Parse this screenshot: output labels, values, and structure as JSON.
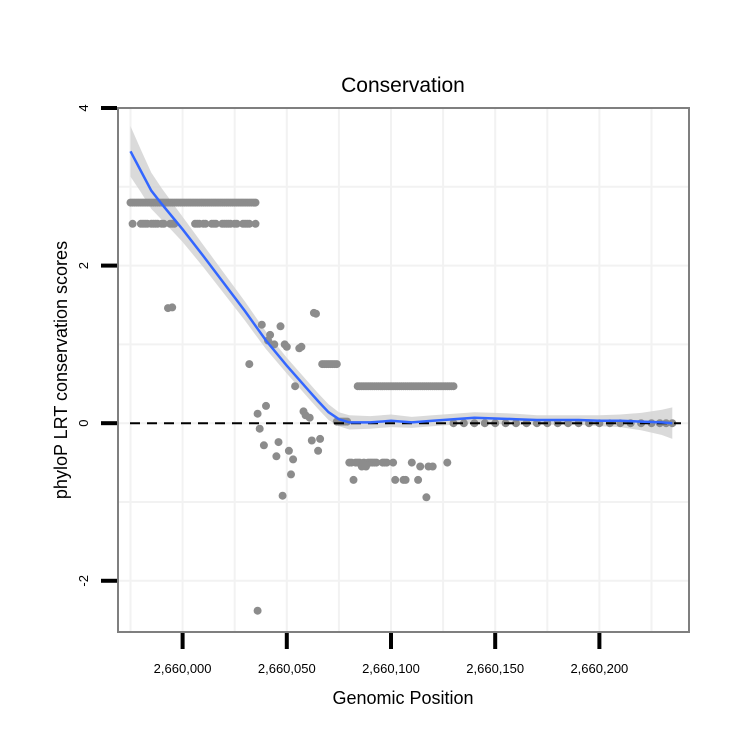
{
  "chart_data": {
    "type": "scatter",
    "title": "Conservation",
    "xlabel": "Genomic Position",
    "ylabel": "phyloP LRT conservation scores",
    "xlim": [
      2659969,
      2660243
    ],
    "ylim": [
      -2.65,
      4.0
    ],
    "x_ticks": [
      {
        "value": 2660000,
        "label": "2,660,000"
      },
      {
        "value": 2660050,
        "label": "2,660,050"
      },
      {
        "value": 2660100,
        "label": "2,660,100"
      },
      {
        "value": 2660150,
        "label": "2,660,150"
      },
      {
        "value": 2660200,
        "label": "2,660,200"
      }
    ],
    "y_ticks": [
      {
        "value": 4,
        "label": "4"
      },
      {
        "value": 2,
        "label": "2"
      },
      {
        "value": 0,
        "label": "0"
      },
      {
        "value": -2,
        "label": "-2"
      }
    ],
    "grid": true,
    "reference_line": {
      "y": 0,
      "style": "dashed"
    },
    "colors": {
      "points": "#8c8c8c",
      "smooth_line": "#3366ff",
      "ribbon": "#d3d3d3",
      "grid": "#f2f2f2",
      "panel_border": "#7f7f7f"
    },
    "series": [
      {
        "name": "observations",
        "type": "scatter",
        "points": [
          [
            2659975,
            2.8
          ],
          [
            2659976,
            2.8
          ],
          [
            2659977,
            2.8
          ],
          [
            2659978,
            2.8
          ],
          [
            2659979,
            2.8
          ],
          [
            2659980,
            2.8
          ],
          [
            2659981,
            2.8
          ],
          [
            2659982,
            2.8
          ],
          [
            2659983,
            2.8
          ],
          [
            2659984,
            2.8
          ],
          [
            2659985,
            2.8
          ],
          [
            2659986,
            2.8
          ],
          [
            2659987,
            2.8
          ],
          [
            2659988,
            2.8
          ],
          [
            2659989,
            2.8
          ],
          [
            2659990,
            2.8
          ],
          [
            2659991,
            2.8
          ],
          [
            2659992,
            2.8
          ],
          [
            2659993,
            2.8
          ],
          [
            2659994,
            2.8
          ],
          [
            2659995,
            2.8
          ],
          [
            2659996,
            2.8
          ],
          [
            2659997,
            2.8
          ],
          [
            2659998,
            2.8
          ],
          [
            2659999,
            2.8
          ],
          [
            2660000,
            2.8
          ],
          [
            2660001,
            2.8
          ],
          [
            2660002,
            2.8
          ],
          [
            2660003,
            2.8
          ],
          [
            2660004,
            2.8
          ],
          [
            2660005,
            2.8
          ],
          [
            2660006,
            2.8
          ],
          [
            2660007,
            2.8
          ],
          [
            2660008,
            2.8
          ],
          [
            2660009,
            2.8
          ],
          [
            2660010,
            2.8
          ],
          [
            2660011,
            2.8
          ],
          [
            2660012,
            2.8
          ],
          [
            2660013,
            2.8
          ],
          [
            2660014,
            2.8
          ],
          [
            2660015,
            2.8
          ],
          [
            2660016,
            2.8
          ],
          [
            2660017,
            2.8
          ],
          [
            2660018,
            2.8
          ],
          [
            2660019,
            2.8
          ],
          [
            2660020,
            2.8
          ],
          [
            2660021,
            2.8
          ],
          [
            2660022,
            2.8
          ],
          [
            2660023,
            2.8
          ],
          [
            2660024,
            2.8
          ],
          [
            2660025,
            2.8
          ],
          [
            2660026,
            2.8
          ],
          [
            2660027,
            2.8
          ],
          [
            2660028,
            2.8
          ],
          [
            2660029,
            2.8
          ],
          [
            2660030,
            2.8
          ],
          [
            2660031,
            2.8
          ],
          [
            2660032,
            2.8
          ],
          [
            2660033,
            2.8
          ],
          [
            2660034,
            2.8
          ],
          [
            2660035,
            2.8
          ],
          [
            2659976,
            2.53
          ],
          [
            2659980,
            2.53
          ],
          [
            2659981,
            2.53
          ],
          [
            2659982,
            2.53
          ],
          [
            2659983,
            2.53
          ],
          [
            2659985,
            2.53
          ],
          [
            2659986,
            2.53
          ],
          [
            2659987,
            2.53
          ],
          [
            2659988,
            2.53
          ],
          [
            2659990,
            2.53
          ],
          [
            2659991,
            2.53
          ],
          [
            2659994,
            2.53
          ],
          [
            2659995,
            2.53
          ],
          [
            2659996,
            2.53
          ],
          [
            2660006,
            2.53
          ],
          [
            2660007,
            2.53
          ],
          [
            2660008,
            2.53
          ],
          [
            2660010,
            2.53
          ],
          [
            2660011,
            2.53
          ],
          [
            2660014,
            2.53
          ],
          [
            2660015,
            2.53
          ],
          [
            2660016,
            2.53
          ],
          [
            2660019,
            2.53
          ],
          [
            2660020,
            2.53
          ],
          [
            2660021,
            2.53
          ],
          [
            2660022,
            2.53
          ],
          [
            2660023,
            2.53
          ],
          [
            2660025,
            2.53
          ],
          [
            2660026,
            2.53
          ],
          [
            2660029,
            2.53
          ],
          [
            2660030,
            2.53
          ],
          [
            2660031,
            2.53
          ],
          [
            2660032,
            2.53
          ],
          [
            2660035,
            2.53
          ],
          [
            2659993,
            1.46
          ],
          [
            2659995,
            1.47
          ],
          [
            2660032,
            0.75
          ],
          [
            2660036,
            0.12
          ],
          [
            2660037,
            -0.07
          ],
          [
            2660038,
            1.25
          ],
          [
            2660039,
            -0.28
          ],
          [
            2660040,
            0.22
          ],
          [
            2660041,
            1.05
          ],
          [
            2660042,
            1.12
          ],
          [
            2660044,
            1.0
          ],
          [
            2660045,
            -0.42
          ],
          [
            2660046,
            -0.24
          ],
          [
            2660047,
            1.23
          ],
          [
            2660048,
            -0.92
          ],
          [
            2660049,
            1.0
          ],
          [
            2660050,
            0.97
          ],
          [
            2660051,
            -0.35
          ],
          [
            2660052,
            -0.65
          ],
          [
            2660053,
            -0.46
          ],
          [
            2660054,
            0.47
          ],
          [
            2660056,
            0.95
          ],
          [
            2660057,
            0.97
          ],
          [
            2660058,
            0.15
          ],
          [
            2660059,
            0.1
          ],
          [
            2660061,
            0.07
          ],
          [
            2660062,
            -0.22
          ],
          [
            2660063,
            1.4
          ],
          [
            2660064,
            1.39
          ],
          [
            2660065,
            -0.35
          ],
          [
            2660066,
            -0.2
          ],
          [
            2660036,
            -2.38
          ],
          [
            2660067,
            0.75
          ],
          [
            2660068,
            0.75
          ],
          [
            2660069,
            0.75
          ],
          [
            2660070,
            0.75
          ],
          [
            2660071,
            0.75
          ],
          [
            2660072,
            0.75
          ],
          [
            2660073,
            0.75
          ],
          [
            2660074,
            0.75
          ],
          [
            2660074,
            0.02
          ],
          [
            2660075,
            0.02
          ],
          [
            2660076,
            0.02
          ],
          [
            2660077,
            0.02
          ],
          [
            2660078,
            0.02
          ],
          [
            2660079,
            0.02
          ],
          [
            2660080,
            -0.5
          ],
          [
            2660081,
            -0.5
          ],
          [
            2660082,
            -0.72
          ],
          [
            2660083,
            -0.5
          ],
          [
            2660084,
            -0.5
          ],
          [
            2660085,
            -0.5
          ],
          [
            2660086,
            -0.55
          ],
          [
            2660087,
            -0.5
          ],
          [
            2660088,
            -0.55
          ],
          [
            2660089,
            -0.5
          ],
          [
            2660090,
            -0.5
          ],
          [
            2660091,
            -0.5
          ],
          [
            2660092,
            -0.5
          ],
          [
            2660093,
            -0.5
          ],
          [
            2660096,
            -0.5
          ],
          [
            2660097,
            -0.5
          ],
          [
            2660098,
            -0.5
          ],
          [
            2660101,
            -0.5
          ],
          [
            2660102,
            -0.72
          ],
          [
            2660106,
            -0.72
          ],
          [
            2660107,
            -0.72
          ],
          [
            2660110,
            -0.5
          ],
          [
            2660113,
            -0.72
          ],
          [
            2660114,
            -0.55
          ],
          [
            2660117,
            -0.94
          ],
          [
            2660118,
            -0.55
          ],
          [
            2660120,
            -0.55
          ],
          [
            2660127,
            -0.5
          ],
          [
            2660084,
            0.47
          ],
          [
            2660085,
            0.47
          ],
          [
            2660086,
            0.47
          ],
          [
            2660087,
            0.47
          ],
          [
            2660088,
            0.47
          ],
          [
            2660089,
            0.47
          ],
          [
            2660090,
            0.47
          ],
          [
            2660091,
            0.47
          ],
          [
            2660092,
            0.47
          ],
          [
            2660093,
            0.47
          ],
          [
            2660094,
            0.47
          ],
          [
            2660095,
            0.47
          ],
          [
            2660096,
            0.47
          ],
          [
            2660097,
            0.47
          ],
          [
            2660098,
            0.47
          ],
          [
            2660099,
            0.47
          ],
          [
            2660100,
            0.47
          ],
          [
            2660101,
            0.47
          ],
          [
            2660102,
            0.47
          ],
          [
            2660103,
            0.47
          ],
          [
            2660104,
            0.47
          ],
          [
            2660105,
            0.47
          ],
          [
            2660106,
            0.47
          ],
          [
            2660107,
            0.47
          ],
          [
            2660108,
            0.47
          ],
          [
            2660109,
            0.47
          ],
          [
            2660110,
            0.47
          ],
          [
            2660111,
            0.47
          ],
          [
            2660112,
            0.47
          ],
          [
            2660113,
            0.47
          ],
          [
            2660114,
            0.47
          ],
          [
            2660115,
            0.47
          ],
          [
            2660116,
            0.47
          ],
          [
            2660117,
            0.47
          ],
          [
            2660118,
            0.47
          ],
          [
            2660119,
            0.47
          ],
          [
            2660120,
            0.47
          ],
          [
            2660121,
            0.47
          ],
          [
            2660122,
            0.47
          ],
          [
            2660123,
            0.47
          ],
          [
            2660124,
            0.47
          ],
          [
            2660125,
            0.47
          ],
          [
            2660126,
            0.47
          ],
          [
            2660127,
            0.47
          ],
          [
            2660128,
            0.47
          ],
          [
            2660129,
            0.47
          ],
          [
            2660130,
            0.47
          ],
          [
            2660130,
            0.0
          ],
          [
            2660135,
            0.0
          ],
          [
            2660140,
            0.0
          ],
          [
            2660145,
            0.0
          ],
          [
            2660150,
            0.0
          ],
          [
            2660155,
            0.0
          ],
          [
            2660160,
            0.0
          ],
          [
            2660165,
            0.0
          ],
          [
            2660170,
            0.0
          ],
          [
            2660175,
            0.0
          ],
          [
            2660180,
            0.0
          ],
          [
            2660185,
            0.0
          ],
          [
            2660190,
            0.0
          ],
          [
            2660195,
            0.0
          ],
          [
            2660200,
            0.0
          ],
          [
            2660205,
            0.0
          ],
          [
            2660210,
            0.0
          ],
          [
            2660215,
            0.0
          ],
          [
            2660220,
            0.0
          ],
          [
            2660225,
            0.0
          ],
          [
            2660229,
            0.0
          ],
          [
            2660232,
            0.0
          ],
          [
            2660235,
            0.0
          ]
        ]
      },
      {
        "name": "loess smooth",
        "type": "line",
        "points": [
          [
            2659975,
            3.45
          ],
          [
            2659980,
            3.2
          ],
          [
            2659985,
            2.95
          ],
          [
            2659990,
            2.78
          ],
          [
            2659995,
            2.62
          ],
          [
            2660000,
            2.46
          ],
          [
            2660010,
            2.12
          ],
          [
            2660020,
            1.77
          ],
          [
            2660030,
            1.42
          ],
          [
            2660040,
            1.05
          ],
          [
            2660050,
            0.73
          ],
          [
            2660060,
            0.43
          ],
          [
            2660065,
            0.28
          ],
          [
            2660070,
            0.14
          ],
          [
            2660075,
            0.05
          ],
          [
            2660080,
            0.01
          ],
          [
            2660090,
            0.01
          ],
          [
            2660100,
            0.03
          ],
          [
            2660110,
            0.01
          ],
          [
            2660120,
            0.03
          ],
          [
            2660130,
            0.05
          ],
          [
            2660140,
            0.07
          ],
          [
            2660150,
            0.06
          ],
          [
            2660160,
            0.05
          ],
          [
            2660170,
            0.04
          ],
          [
            2660180,
            0.04
          ],
          [
            2660190,
            0.04
          ],
          [
            2660200,
            0.03
          ],
          [
            2660210,
            0.03
          ],
          [
            2660220,
            0.02
          ],
          [
            2660230,
            0.01
          ],
          [
            2660235,
            0.0
          ]
        ],
        "ribbon_halfwidth": [
          0.32,
          0.27,
          0.23,
          0.2,
          0.18,
          0.16,
          0.14,
          0.13,
          0.12,
          0.11,
          0.1,
          0.1,
          0.1,
          0.1,
          0.09,
          0.09,
          0.08,
          0.08,
          0.07,
          0.07,
          0.07,
          0.07,
          0.07,
          0.07,
          0.06,
          0.06,
          0.06,
          0.07,
          0.08,
          0.11,
          0.16,
          0.2
        ]
      }
    ]
  }
}
